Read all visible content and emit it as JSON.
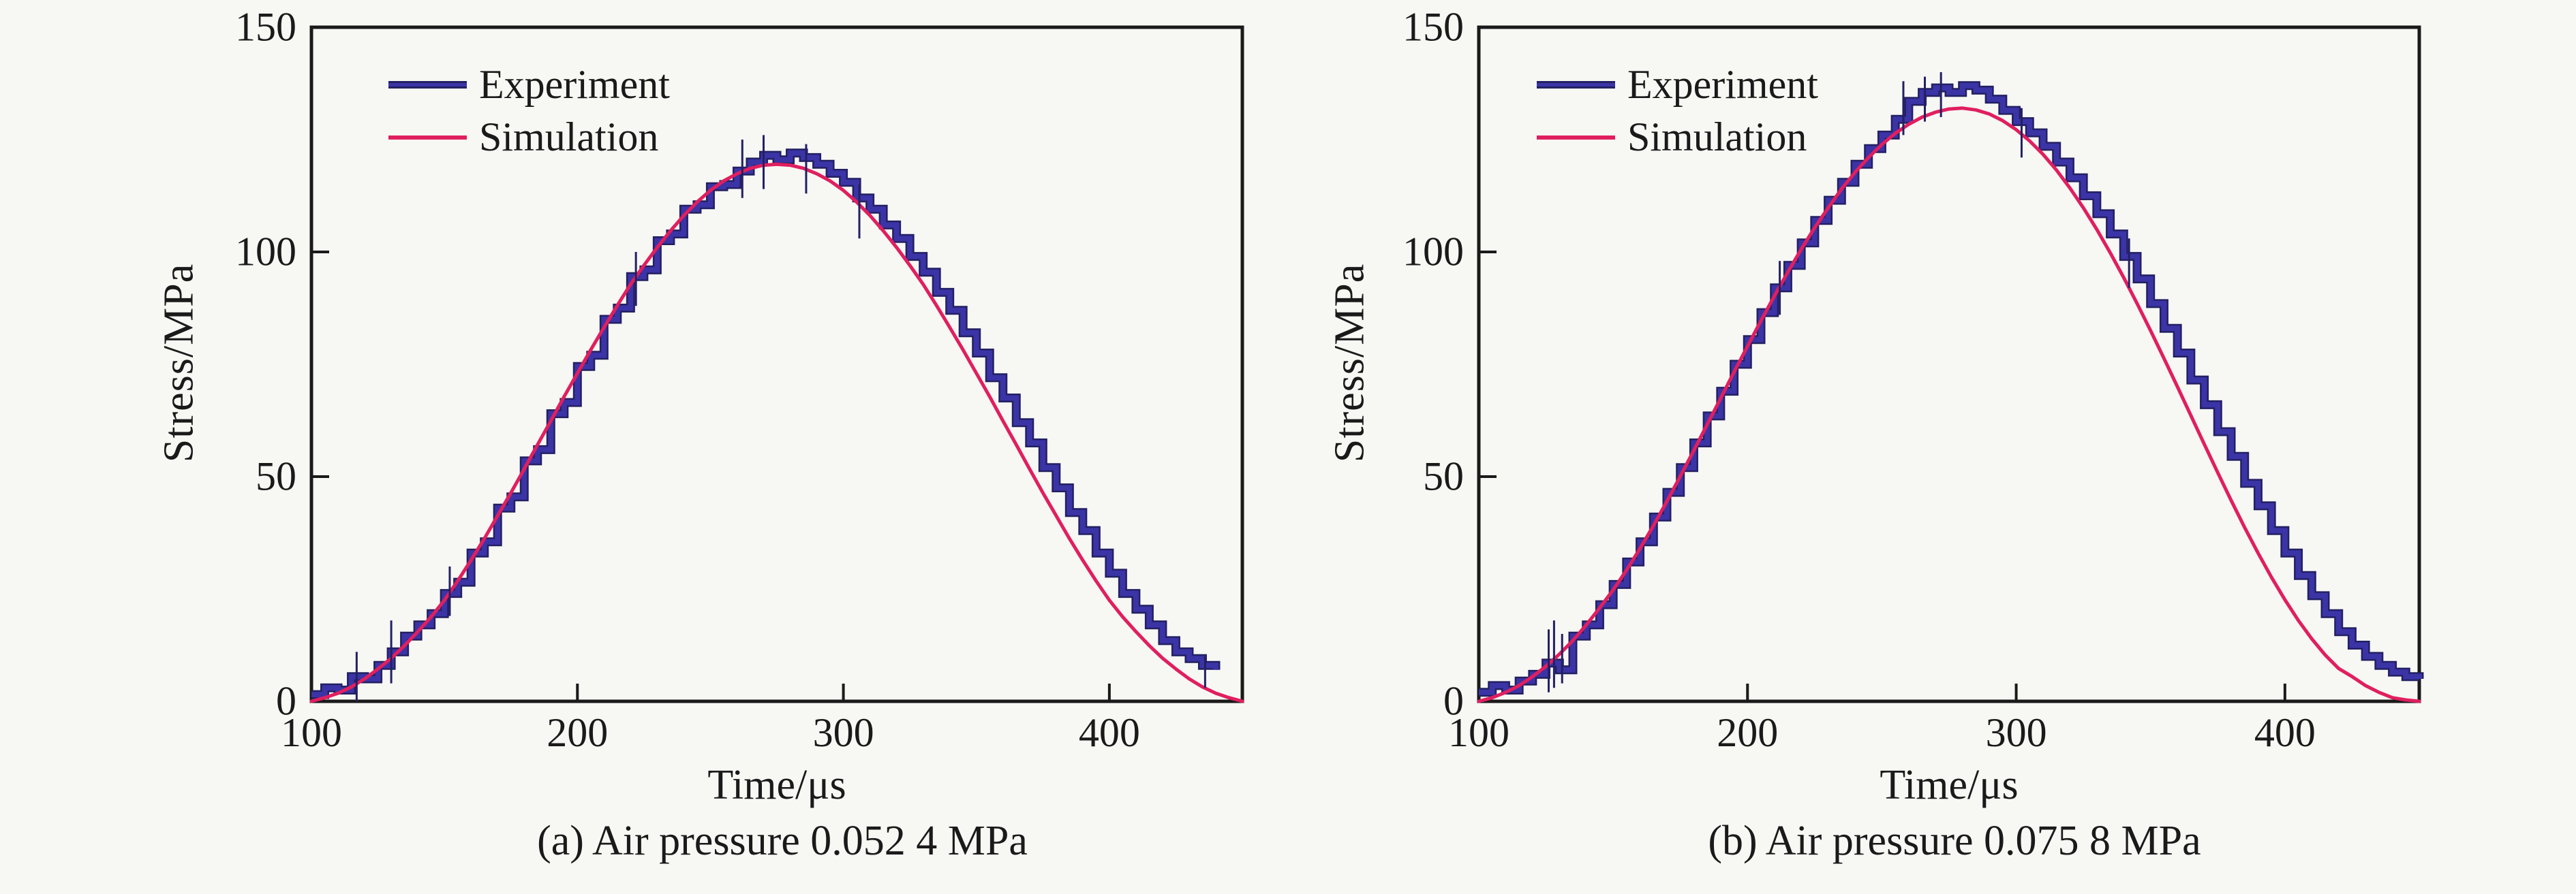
{
  "colors": {
    "background": "#f7f7f4",
    "ink": "#1a1a1a",
    "experiment": "#3b34a6",
    "experiment_edge": "#232063",
    "simulation": "#e01f5f"
  },
  "chart_data": [
    {
      "type": "line",
      "caption": "(a) Air pressure 0.052 4 MPa",
      "xlabel": "Time/μs",
      "ylabel": "Stress/MPa",
      "xlim": [
        100,
        450
      ],
      "ylim": [
        0,
        150
      ],
      "x_ticks": [
        100,
        200,
        300,
        400
      ],
      "y_ticks": [
        0,
        50,
        100,
        150
      ],
      "grid": false,
      "legend_position": "upper-left",
      "series": [
        {
          "name": "Experiment",
          "style": "step",
          "color_key": "experiment",
          "t_start": 100,
          "t_step": 5,
          "values": [
            1.5,
            3,
            2.5,
            5.5,
            5,
            8,
            11,
            14.5,
            17,
            19.5,
            24,
            26.5,
            33,
            35.5,
            43,
            45.5,
            53.5,
            56,
            64,
            66.5,
            74.5,
            77,
            85,
            87.5,
            94.5,
            96,
            102.5,
            104,
            109.5,
            110.5,
            114.5,
            115,
            118,
            120,
            121.5,
            120.5,
            122,
            121,
            119.5,
            117.5,
            115.5,
            112,
            109.5,
            106,
            103,
            99,
            95.5,
            91,
            87,
            82,
            77.5,
            72,
            67.5,
            62,
            57.5,
            52,
            47.5,
            42,
            38,
            33,
            28.5,
            24,
            20.5,
            17,
            13.5,
            11,
            9.5,
            8,
            7
          ]
        },
        {
          "name": "Simulation",
          "style": "smooth",
          "color_key": "simulation",
          "t_start": 100,
          "t_step": 5,
          "values": [
            0,
            0.8,
            1.8,
            3.2,
            5,
            7.2,
            9.6,
            12.4,
            15.5,
            18.8,
            22.5,
            26.8,
            31.4,
            36.2,
            41.3,
            46.4,
            51.7,
            57.1,
            62.4,
            67.8,
            73,
            78.2,
            83.2,
            88.1,
            92.8,
            97,
            101,
            104.7,
            108.1,
            111.1,
            113.7,
            115.8,
            117.4,
            118.6,
            119.3,
            119.5,
            119.3,
            118.6,
            117.4,
            115.8,
            113.7,
            111.1,
            108.1,
            104.7,
            101,
            97,
            92.8,
            88.1,
            83.2,
            78.2,
            73,
            67.8,
            62.4,
            57.1,
            51.7,
            46.4,
            41.3,
            36.2,
            31.4,
            26.8,
            22.5,
            18.8,
            15.5,
            12.4,
            9.6,
            7.2,
            5,
            3.2,
            1.8,
            0.8,
            0
          ]
        }
      ],
      "noise_spikes": [
        [
          117,
          0,
          11
        ],
        [
          130,
          4,
          18
        ],
        [
          152,
          19,
          30
        ],
        [
          222,
          88,
          100
        ],
        [
          262,
          112,
          125
        ],
        [
          270,
          114,
          126
        ],
        [
          286,
          113,
          124
        ],
        [
          306,
          103,
          115
        ],
        [
          436,
          3,
          10
        ]
      ]
    },
    {
      "type": "line",
      "caption": "(b) Air pressure 0.075 8 MPa",
      "xlabel": "Time/μs",
      "ylabel": "Stress/MPa",
      "xlim": [
        100,
        450
      ],
      "ylim": [
        0,
        150
      ],
      "x_ticks": [
        100,
        200,
        300,
        400
      ],
      "y_ticks": [
        0,
        50,
        100,
        150
      ],
      "grid": false,
      "legend_position": "upper-left",
      "series": [
        {
          "name": "Experiment",
          "style": "step",
          "color_key": "experiment",
          "t_start": 100,
          "t_step": 5,
          "values": [
            2,
            3.5,
            2.5,
            4.5,
            6,
            8.5,
            7,
            14.5,
            17,
            21.5,
            26,
            31,
            35.5,
            41,
            46.5,
            52,
            57.5,
            63.5,
            69,
            75,
            80.5,
            86.5,
            92,
            97,
            102,
            107,
            111.5,
            115.5,
            119.5,
            123,
            126,
            129.5,
            133.5,
            135.5,
            136.5,
            135.5,
            137,
            136,
            134,
            131.5,
            129,
            126.5,
            123.5,
            120,
            116.5,
            112.5,
            108.5,
            104,
            99,
            94,
            88.5,
            83,
            77.5,
            71.5,
            66,
            60,
            54.5,
            48.5,
            43.5,
            38,
            33,
            28,
            23.5,
            19.5,
            15.5,
            12.5,
            10,
            8,
            6.5,
            5.5,
            5
          ]
        },
        {
          "name": "Simulation",
          "style": "smooth",
          "color_key": "simulation",
          "t_start": 100,
          "t_step": 5,
          "values": [
            0,
            0.8,
            2,
            3.5,
            5.5,
            7.8,
            10.5,
            13.5,
            17,
            20.8,
            24.8,
            29.2,
            34,
            39.1,
            44.5,
            50.1,
            55.8,
            61.6,
            67.4,
            73.3,
            79,
            84.7,
            90.2,
            95.5,
            100.6,
            105.4,
            109.8,
            114,
            117.7,
            121,
            123.9,
            126.4,
            128.4,
            130,
            131.1,
            131.8,
            132,
            131.6,
            130.7,
            129.2,
            127.2,
            124.7,
            121.7,
            118.2,
            114.2,
            109.8,
            105,
            99.8,
            94.3,
            88.5,
            82.5,
            76.3,
            70,
            63.6,
            57.2,
            50.9,
            44.7,
            38.7,
            33,
            27.6,
            22.6,
            18,
            13.9,
            10.3,
            7.3,
            5.5,
            3.5,
            2,
            0.8,
            0.3,
            0
          ]
        }
      ],
      "noise_spikes": [
        [
          126,
          2,
          16
        ],
        [
          128,
          3,
          18
        ],
        [
          131,
          4,
          15
        ],
        [
          212,
          86,
          98
        ],
        [
          258,
          126,
          138
        ],
        [
          266,
          129,
          139
        ],
        [
          272,
          130,
          140
        ],
        [
          302,
          121,
          132
        ],
        [
          342,
          92,
          103
        ]
      ]
    }
  ]
}
